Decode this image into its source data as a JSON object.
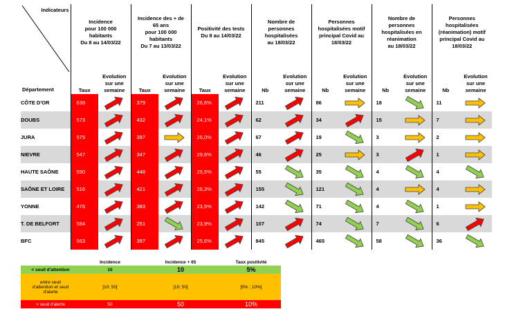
{
  "corner": {
    "top": "Indicateurs",
    "bottom": "Département"
  },
  "groups": [
    {
      "title": "Incidence\npour 100 000\nhabitants\nDu 8 au 14/03/22",
      "cols": [
        "Taux",
        "Evolution\nsur une\nsemaine"
      ]
    },
    {
      "title": "Incidence des + de\n65 ans\npour 100 000\nhabitants\nDu 7 au 13/03/22",
      "cols": [
        "Taux",
        "Evolution\nsur une\nsemaine"
      ]
    },
    {
      "title": "Positivité des tests\nDu 8 au 14/03/22",
      "cols": [
        "Taux",
        "Evolution\nsur une\nsemaine"
      ]
    },
    {
      "title": "Nombre de\npersonnes\nhospitalisées\nau 18/03/22",
      "cols": [
        "Nb",
        "Evolution\nsur une\nsemaine"
      ]
    },
    {
      "title": "Personnes\nhospitalisées motif\nprincipal Covid au\n18/03/22",
      "cols": [
        "Nb",
        "Evolution\nsur une\nsemaine"
      ]
    },
    {
      "title": "Nombre de\npersonnes\nhospitalisées en\nréanimation\nau 18/03/22",
      "cols": [
        "Nb",
        "Evolution\nsur une\nsemaine"
      ]
    },
    {
      "title": "Personnes\nhospitalisées\n(réanimation) motif\nprincipal Covid au\n18/03/22",
      "cols": [
        "Nb",
        "Evolution\nsur une\nsemaine"
      ]
    }
  ],
  "rows": [
    {
      "dep": "CÔTE D'OR",
      "vals": [
        "638",
        "379",
        "26,6%",
        "211",
        "86",
        "18",
        "11"
      ],
      "arrows": [
        "up",
        "up",
        "up",
        "up",
        "flat",
        "down",
        "flat"
      ]
    },
    {
      "dep": "DOUBS",
      "vals": [
        "573",
        "432",
        "24,1%",
        "62",
        "34",
        "15",
        "7"
      ],
      "arrows": [
        "up",
        "up",
        "up",
        "up",
        "up",
        "flat",
        "flat"
      ]
    },
    {
      "dep": "JURA",
      "vals": [
        "575",
        "397",
        "26,0%",
        "67",
        "19",
        "3",
        "2"
      ],
      "arrows": [
        "up",
        "flat",
        "up",
        "up",
        "down",
        "flat",
        "flat"
      ]
    },
    {
      "dep": "NIEVRE",
      "vals": [
        "547",
        "347",
        "29,6%",
        "46",
        "25",
        "3",
        "1"
      ],
      "arrows": [
        "up",
        "up",
        "up",
        "up",
        "flat",
        "up",
        "flat"
      ]
    },
    {
      "dep": "HAUTE SAÔNE",
      "vals": [
        "590",
        "448",
        "25,5%",
        "55",
        "35",
        "4",
        "4"
      ],
      "arrows": [
        "up",
        "up",
        "up",
        "down",
        "down",
        "down",
        "down"
      ]
    },
    {
      "dep": "SAÔNE ET LOIRE",
      "vals": [
        "516",
        "421",
        "26,3%",
        "155",
        "121",
        "4",
        "4"
      ],
      "arrows": [
        "up",
        "up",
        "up",
        "down",
        "down",
        "flat",
        "flat"
      ]
    },
    {
      "dep": "YONNE",
      "vals": [
        "476",
        "383",
        "23,5%",
        "142",
        "71",
        "4",
        "1"
      ],
      "arrows": [
        "up",
        "up",
        "up",
        "down",
        "down",
        "down",
        "flat"
      ]
    },
    {
      "dep": "T. DE BELFORT",
      "vals": [
        "584",
        "251",
        "23,9%",
        "107",
        "74",
        "7",
        "6"
      ],
      "arrows": [
        "up",
        "down",
        "up",
        "up",
        "down",
        "down",
        "up"
      ]
    },
    {
      "dep": "BFC",
      "vals": [
        "563",
        "397",
        "25,6%",
        "845",
        "465",
        "58",
        "36"
      ],
      "arrows": [
        "up",
        "up",
        "up",
        "up",
        "down",
        "down",
        "down"
      ]
    }
  ],
  "colors": {
    "red": "#ff0000",
    "green": "#92d050",
    "orange": "#ffc000",
    "shade": "#d9d9d9"
  },
  "legend": {
    "headers": [
      "Incidence",
      "Incidence + 65",
      "Taux positivité"
    ],
    "rows": [
      {
        "label": "< seuil d'attention",
        "vals": [
          "10",
          "10",
          "5%"
        ],
        "color": "green"
      },
      {
        "label": "entre seuil\nd'attention et seuil\nd'alerte",
        "vals": [
          "]10; 50[",
          "]10; 50[",
          "]5% ; 10%["
        ],
        "color": "orange"
      },
      {
        "label": "> seuil d'alerte",
        "vals": [
          "50",
          "50",
          "10%"
        ],
        "color": "red"
      }
    ]
  }
}
